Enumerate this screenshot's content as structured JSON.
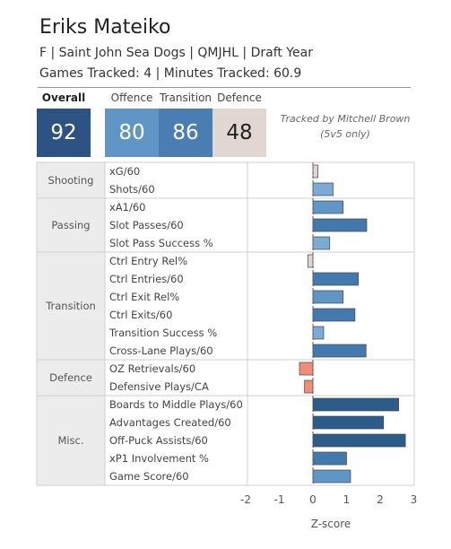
{
  "header": {
    "player_name": "Eriks Mateiko",
    "info": "F | Saint John Sea Dogs | QMJHL | Draft Year",
    "tracking": "Games Tracked: 4 | Minutes Tracked: 60.9",
    "tracked_by": "Tracked by Mitchell Brown",
    "tracked_note": "(5v5 only)"
  },
  "cards": [
    {
      "label": "Overall",
      "value": "92",
      "color": "#2d5384",
      "text_color": "#ffffff"
    },
    {
      "label": "Offence",
      "value": "80",
      "color": "#6096c5",
      "text_color": "#ffffff"
    },
    {
      "label": "Transition",
      "value": "86",
      "color": "#4a7db2",
      "text_color": "#ffffff"
    },
    {
      "label": "Defence",
      "value": "48",
      "color": "#e1d6d2",
      "text_color": "#222222"
    }
  ],
  "colors": {
    "bar_dark": "#2d5b8a",
    "bar_mid": "#4479ae",
    "bar_light": "#7aabd6",
    "bar_neutral": "#e3d4d1",
    "bar_negative": "#f08d79"
  },
  "chart_data": {
    "type": "bar",
    "orientation": "horizontal",
    "xlabel": "Z-score",
    "xlim": [
      -2.3,
      3.1
    ],
    "xticks": [
      -2,
      -1,
      0,
      1,
      2,
      3
    ],
    "xtick_labels": [
      "-2",
      "-1",
      "0",
      "1",
      "2",
      "3"
    ],
    "zero_line": "dashed",
    "groups": [
      {
        "name": "Shooting",
        "metrics": [
          {
            "label": "xG/60",
            "value": 0.15,
            "color": "#e3d4d1"
          },
          {
            "label": "Shots/60",
            "value": 0.6,
            "color": "#7aabd6"
          }
        ]
      },
      {
        "name": "Passing",
        "metrics": [
          {
            "label": "xA1/60",
            "value": 0.9,
            "color": "#6096c5"
          },
          {
            "label": "Slot Passes/60",
            "value": 1.6,
            "color": "#4479ae"
          },
          {
            "label": "Slot Pass Success %",
            "value": 0.5,
            "color": "#7aabd6"
          }
        ]
      },
      {
        "name": "Transition",
        "metrics": [
          {
            "label": "Ctrl Entry Rel%",
            "value": -0.15,
            "color": "#e3d4d1"
          },
          {
            "label": "Ctrl Entries/60",
            "value": 1.35,
            "color": "#4479ae"
          },
          {
            "label": "Ctrl Exit Rel%",
            "value": 0.9,
            "color": "#6096c5"
          },
          {
            "label": "Ctrl Exits/60",
            "value": 1.25,
            "color": "#4479ae"
          },
          {
            "label": "Transition Success %",
            "value": 0.32,
            "color": "#7aabd6"
          },
          {
            "label": "Cross-Lane Plays/60",
            "value": 1.58,
            "color": "#4479ae"
          }
        ]
      },
      {
        "name": "Defence",
        "metrics": [
          {
            "label": "OZ Retrievals/60",
            "value": -0.4,
            "color": "#f08d79"
          },
          {
            "label": "Defensive Plays/CA",
            "value": -0.25,
            "color": "#f08d79"
          }
        ]
      },
      {
        "name": "Misc.",
        "metrics": [
          {
            "label": "Boards to Middle Plays/60",
            "value": 2.55,
            "color": "#2d5b8a"
          },
          {
            "label": "Advantages Created/60",
            "value": 2.1,
            "color": "#2d5b8a"
          },
          {
            "label": "Off-Puck Assists/60",
            "value": 2.75,
            "color": "#2d5b8a"
          },
          {
            "label": "xP1 Involvement %",
            "value": 1.0,
            "color": "#4479ae"
          },
          {
            "label": "Game Score/60",
            "value": 1.12,
            "color": "#6096c5"
          }
        ]
      }
    ]
  }
}
